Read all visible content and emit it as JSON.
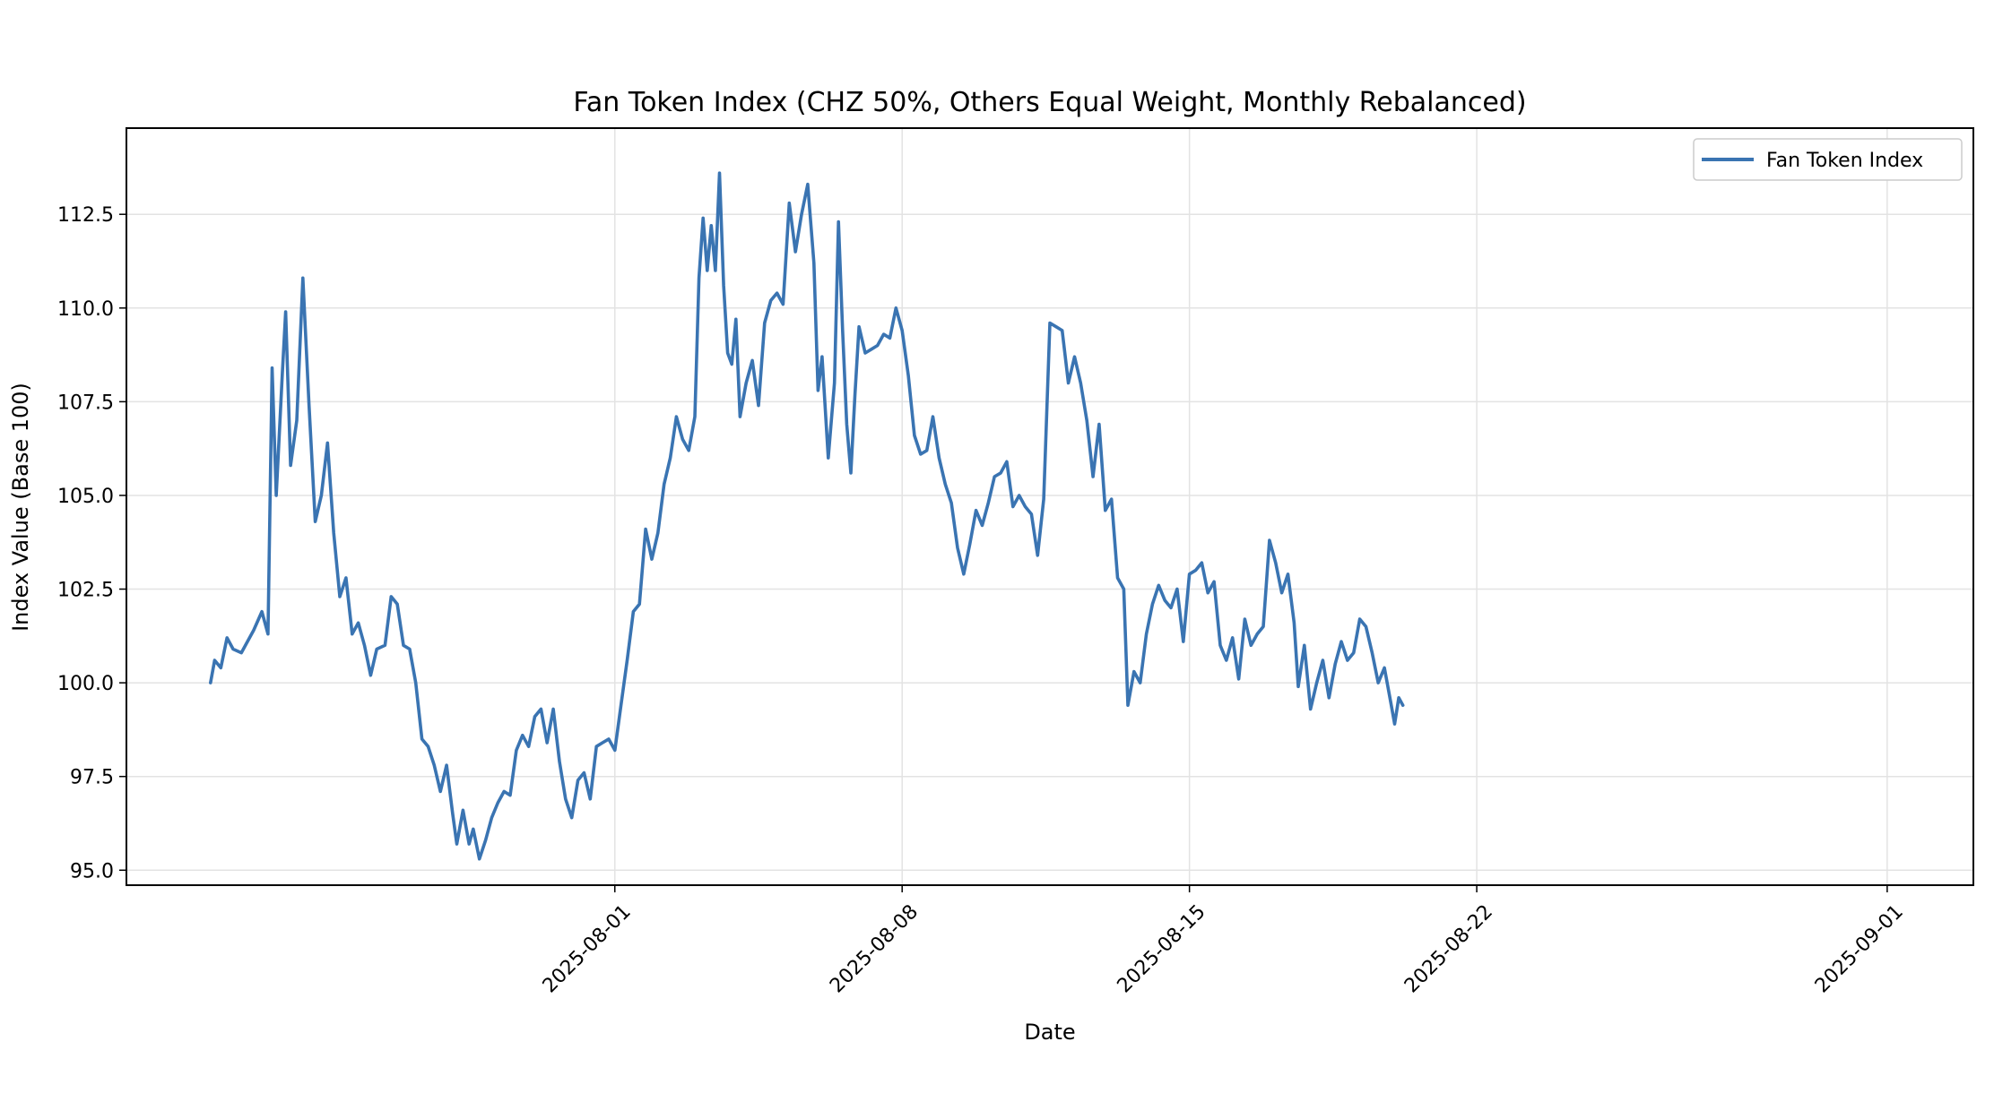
{
  "chart_data": {
    "type": "line",
    "title": "Fan Token Index (CHZ 50%, Others Equal Weight, Monthly Rebalanced)",
    "xlabel": "Date",
    "ylabel": "Index Value (Base 100)",
    "ylim": [
      94.6,
      114.8
    ],
    "xlim_days": [
      -11.9,
      33.1
    ],
    "x_origin": "2025-08-01",
    "yticks": [
      95.0,
      97.5,
      100.0,
      102.5,
      105.0,
      107.5,
      110.0,
      112.5
    ],
    "ytick_labels": [
      "95.0",
      "97.5",
      "100.0",
      "102.5",
      "105.0",
      "107.5",
      "110.0",
      "112.5"
    ],
    "xticks_days": [
      0,
      7,
      14,
      21,
      31
    ],
    "xtick_labels": [
      "2025-08-01",
      "2025-08-08",
      "2025-08-15",
      "2025-08-22",
      "2025-09-01"
    ],
    "grid": true,
    "legend": {
      "position": "top-right",
      "entries": [
        "Fan Token Index"
      ]
    },
    "series": [
      {
        "name": "Fan Token Index",
        "color": "#3a74b2",
        "points": [
          [
            -9.85,
            100.0
          ],
          [
            -9.75,
            100.6
          ],
          [
            -9.6,
            100.4
          ],
          [
            -9.45,
            101.2
          ],
          [
            -9.3,
            100.9
          ],
          [
            -9.1,
            100.8
          ],
          [
            -8.95,
            101.1
          ],
          [
            -8.8,
            101.4
          ],
          [
            -8.6,
            101.9
          ],
          [
            -8.45,
            101.3
          ],
          [
            -8.35,
            108.4
          ],
          [
            -8.25,
            105.0
          ],
          [
            -8.1,
            108.3
          ],
          [
            -8.02,
            109.9
          ],
          [
            -7.9,
            105.8
          ],
          [
            -7.75,
            107.0
          ],
          [
            -7.6,
            110.8
          ],
          [
            -7.45,
            107.4
          ],
          [
            -7.3,
            104.3
          ],
          [
            -7.15,
            105.0
          ],
          [
            -7.0,
            106.4
          ],
          [
            -6.85,
            104.0
          ],
          [
            -6.7,
            102.3
          ],
          [
            -6.55,
            102.8
          ],
          [
            -6.4,
            101.3
          ],
          [
            -6.25,
            101.6
          ],
          [
            -6.1,
            101.0
          ],
          [
            -5.95,
            100.2
          ],
          [
            -5.8,
            100.9
          ],
          [
            -5.6,
            101.0
          ],
          [
            -5.45,
            102.3
          ],
          [
            -5.3,
            102.1
          ],
          [
            -5.15,
            101.0
          ],
          [
            -5.0,
            100.9
          ],
          [
            -4.85,
            100.0
          ],
          [
            -4.7,
            98.5
          ],
          [
            -4.55,
            98.3
          ],
          [
            -4.4,
            97.8
          ],
          [
            -4.25,
            97.1
          ],
          [
            -4.1,
            97.8
          ],
          [
            -3.95,
            96.5
          ],
          [
            -3.85,
            95.7
          ],
          [
            -3.7,
            96.6
          ],
          [
            -3.55,
            95.7
          ],
          [
            -3.45,
            96.1
          ],
          [
            -3.3,
            95.3
          ],
          [
            -3.15,
            95.8
          ],
          [
            -3.0,
            96.4
          ],
          [
            -2.85,
            96.8
          ],
          [
            -2.7,
            97.1
          ],
          [
            -2.55,
            97.0
          ],
          [
            -2.4,
            98.2
          ],
          [
            -2.25,
            98.6
          ],
          [
            -2.1,
            98.3
          ],
          [
            -1.95,
            99.1
          ],
          [
            -1.8,
            99.3
          ],
          [
            -1.65,
            98.4
          ],
          [
            -1.5,
            99.3
          ],
          [
            -1.35,
            97.9
          ],
          [
            -1.2,
            96.9
          ],
          [
            -1.05,
            96.4
          ],
          [
            -0.9,
            97.4
          ],
          [
            -0.75,
            97.6
          ],
          [
            -0.6,
            96.9
          ],
          [
            -0.45,
            98.3
          ],
          [
            -0.3,
            98.4
          ],
          [
            -0.15,
            98.5
          ],
          [
            0.0,
            98.2
          ],
          [
            0.15,
            99.4
          ],
          [
            0.3,
            100.6
          ],
          [
            0.45,
            101.9
          ],
          [
            0.6,
            102.1
          ],
          [
            0.75,
            104.1
          ],
          [
            0.9,
            103.3
          ],
          [
            1.05,
            104.0
          ],
          [
            1.2,
            105.3
          ],
          [
            1.35,
            106.0
          ],
          [
            1.5,
            107.1
          ],
          [
            1.65,
            106.5
          ],
          [
            1.8,
            106.2
          ],
          [
            1.95,
            107.1
          ],
          [
            2.05,
            110.8
          ],
          [
            2.15,
            112.4
          ],
          [
            2.25,
            111.0
          ],
          [
            2.35,
            112.2
          ],
          [
            2.45,
            111.0
          ],
          [
            2.55,
            113.6
          ],
          [
            2.65,
            110.6
          ],
          [
            2.75,
            108.8
          ],
          [
            2.85,
            108.5
          ],
          [
            2.95,
            109.7
          ],
          [
            3.05,
            107.1
          ],
          [
            3.2,
            108.0
          ],
          [
            3.35,
            108.6
          ],
          [
            3.5,
            107.4
          ],
          [
            3.65,
            109.6
          ],
          [
            3.8,
            110.2
          ],
          [
            3.95,
            110.4
          ],
          [
            4.1,
            110.1
          ],
          [
            4.25,
            112.8
          ],
          [
            4.4,
            111.5
          ],
          [
            4.55,
            112.5
          ],
          [
            4.7,
            113.3
          ],
          [
            4.85,
            111.2
          ],
          [
            4.95,
            107.8
          ],
          [
            5.05,
            108.7
          ],
          [
            5.2,
            106.0
          ],
          [
            5.35,
            108.0
          ],
          [
            5.45,
            112.3
          ],
          [
            5.55,
            109.4
          ],
          [
            5.65,
            106.9
          ],
          [
            5.75,
            105.6
          ],
          [
            5.85,
            107.7
          ],
          [
            5.95,
            109.5
          ],
          [
            6.1,
            108.8
          ],
          [
            6.25,
            108.9
          ],
          [
            6.4,
            109.0
          ],
          [
            6.55,
            109.3
          ],
          [
            6.7,
            109.2
          ],
          [
            6.85,
            110.0
          ],
          [
            7.0,
            109.4
          ],
          [
            7.15,
            108.2
          ],
          [
            7.3,
            106.6
          ],
          [
            7.45,
            106.1
          ],
          [
            7.6,
            106.2
          ],
          [
            7.75,
            107.1
          ],
          [
            7.9,
            106.0
          ],
          [
            8.05,
            105.3
          ],
          [
            8.2,
            104.8
          ],
          [
            8.35,
            103.6
          ],
          [
            8.5,
            102.9
          ],
          [
            8.65,
            103.7
          ],
          [
            8.8,
            104.6
          ],
          [
            8.95,
            104.2
          ],
          [
            9.1,
            104.8
          ],
          [
            9.25,
            105.5
          ],
          [
            9.4,
            105.6
          ],
          [
            9.55,
            105.9
          ],
          [
            9.7,
            104.7
          ],
          [
            9.85,
            105.0
          ],
          [
            10.0,
            104.7
          ],
          [
            10.15,
            104.5
          ],
          [
            10.3,
            103.4
          ],
          [
            10.45,
            104.9
          ],
          [
            10.6,
            109.6
          ],
          [
            10.75,
            109.5
          ],
          [
            10.9,
            109.4
          ],
          [
            11.05,
            108.0
          ],
          [
            11.2,
            108.7
          ],
          [
            11.35,
            108.0
          ],
          [
            11.5,
            107.0
          ],
          [
            11.65,
            105.5
          ],
          [
            11.8,
            106.9
          ],
          [
            11.95,
            104.6
          ],
          [
            12.1,
            104.9
          ],
          [
            12.25,
            102.8
          ],
          [
            12.4,
            102.5
          ],
          [
            12.5,
            99.4
          ],
          [
            12.65,
            100.3
          ],
          [
            12.8,
            100.0
          ],
          [
            12.95,
            101.3
          ],
          [
            13.1,
            102.1
          ],
          [
            13.25,
            102.6
          ],
          [
            13.4,
            102.2
          ],
          [
            13.55,
            102.0
          ],
          [
            13.7,
            102.5
          ],
          [
            13.85,
            101.1
          ],
          [
            14.0,
            102.9
          ],
          [
            14.15,
            103.0
          ],
          [
            14.3,
            103.2
          ],
          [
            14.45,
            102.4
          ],
          [
            14.6,
            102.7
          ],
          [
            14.75,
            101.0
          ],
          [
            14.9,
            100.6
          ],
          [
            15.05,
            101.2
          ],
          [
            15.2,
            100.1
          ],
          [
            15.35,
            101.7
          ],
          [
            15.5,
            101.0
          ],
          [
            15.65,
            101.3
          ],
          [
            15.8,
            101.5
          ],
          [
            15.95,
            103.8
          ],
          [
            16.1,
            103.2
          ],
          [
            16.25,
            102.4
          ],
          [
            16.4,
            102.9
          ],
          [
            16.55,
            101.6
          ],
          [
            16.65,
            99.9
          ],
          [
            16.8,
            101.0
          ],
          [
            16.95,
            99.3
          ],
          [
            17.1,
            100.0
          ],
          [
            17.25,
            100.6
          ],
          [
            17.4,
            99.6
          ],
          [
            17.55,
            100.5
          ],
          [
            17.7,
            101.1
          ],
          [
            17.85,
            100.6
          ],
          [
            18.0,
            100.8
          ],
          [
            18.15,
            101.7
          ],
          [
            18.3,
            101.5
          ],
          [
            18.45,
            100.8
          ],
          [
            18.6,
            100.0
          ],
          [
            18.75,
            100.4
          ],
          [
            18.9,
            99.5
          ],
          [
            19.0,
            98.9
          ],
          [
            19.1,
            99.6
          ],
          [
            19.2,
            99.4
          ]
        ]
      }
    ]
  }
}
